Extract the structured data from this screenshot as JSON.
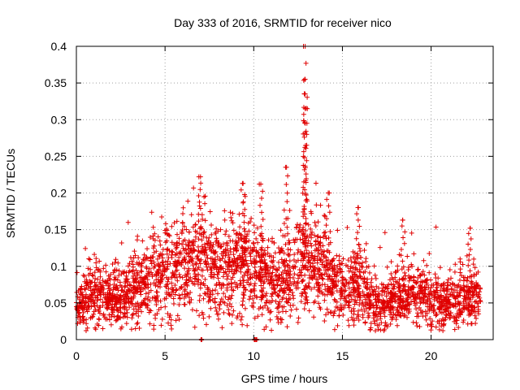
{
  "chart_data": {
    "type": "scatter",
    "title": "Day 333 of 2016, SRMTID for receiver nico",
    "xlabel": "GPS time / hours",
    "ylabel": "SRMTID / TECUs",
    "xlim": [
      0,
      23.5
    ],
    "ylim": [
      0,
      0.4
    ],
    "x_ticks": [
      0,
      5,
      10,
      15,
      20
    ],
    "x_tick_labels": [
      "0",
      "5",
      "10",
      "15",
      "20"
    ],
    "y_ticks": [
      0,
      0.05,
      0.1,
      0.15,
      0.2,
      0.25,
      0.3,
      0.35,
      0.4
    ],
    "y_tick_labels": [
      "0",
      "0.05",
      "0.1",
      "0.15",
      "0.2",
      "0.25",
      "0.3",
      "0.35",
      "0.4"
    ],
    "grid": true,
    "marker": "plus",
    "marker_color": "#e00000",
    "grid_color": "#a0a0a0",
    "point_count_estimate": 3000,
    "trend_samples": [
      {
        "x": 0.0,
        "y": 0.04
      },
      {
        "x": 1.0,
        "y": 0.06
      },
      {
        "x": 2.0,
        "y": 0.055
      },
      {
        "x": 3.0,
        "y": 0.06
      },
      {
        "x": 4.0,
        "y": 0.08
      },
      {
        "x": 5.0,
        "y": 0.09
      },
      {
        "x": 6.0,
        "y": 0.1
      },
      {
        "x": 7.0,
        "y": 0.11
      },
      {
        "x": 8.0,
        "y": 0.09
      },
      {
        "x": 9.0,
        "y": 0.1
      },
      {
        "x": 10.0,
        "y": 0.095
      },
      {
        "x": 11.0,
        "y": 0.075
      },
      {
        "x": 12.0,
        "y": 0.085
      },
      {
        "x": 13.0,
        "y": 0.1
      },
      {
        "x": 14.0,
        "y": 0.09
      },
      {
        "x": 15.0,
        "y": 0.07
      },
      {
        "x": 16.0,
        "y": 0.07
      },
      {
        "x": 17.0,
        "y": 0.045
      },
      {
        "x": 18.0,
        "y": 0.055
      },
      {
        "x": 19.0,
        "y": 0.065
      },
      {
        "x": 20.0,
        "y": 0.05
      },
      {
        "x": 21.0,
        "y": 0.05
      },
      {
        "x": 22.0,
        "y": 0.06
      },
      {
        "x": 22.8,
        "y": 0.05
      }
    ],
    "notable_points": [
      {
        "x": 12.9,
        "y": 0.4
      },
      {
        "x": 12.9,
        "y": 0.355
      },
      {
        "x": 12.9,
        "y": 0.335
      },
      {
        "x": 12.9,
        "y": 0.315
      },
      {
        "x": 12.9,
        "y": 0.295
      },
      {
        "x": 11.8,
        "y": 0.235
      },
      {
        "x": 7.0,
        "y": 0.222
      },
      {
        "x": 9.4,
        "y": 0.213
      },
      {
        "x": 10.4,
        "y": 0.212
      },
      {
        "x": 14.2,
        "y": 0.2
      },
      {
        "x": 15.9,
        "y": 0.18
      },
      {
        "x": 18.4,
        "y": 0.163
      },
      {
        "x": 22.2,
        "y": 0.152
      }
    ]
  }
}
